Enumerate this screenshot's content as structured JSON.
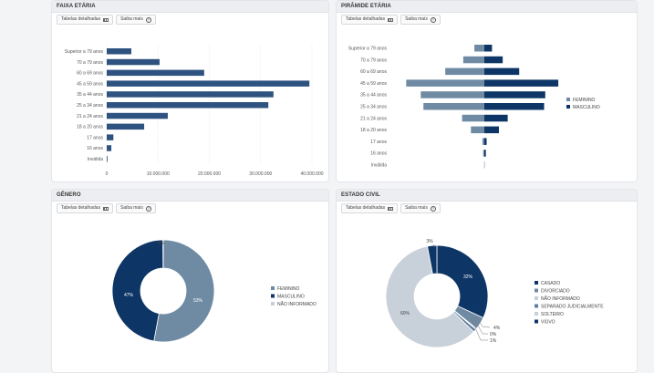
{
  "colors": {
    "dark": "#0d3566",
    "bar": "#2e5380",
    "gray": "#6f8aa3",
    "light": "#c6ced8",
    "mid": "#5d7ea1",
    "paleblue": "#a9b9cb"
  },
  "buttons": {
    "tables": "Tabelas detalhadas",
    "more": "Saiba mais"
  },
  "panels": {
    "faixa": {
      "title": "FAIXA ETÁRIA"
    },
    "piramide": {
      "title": "PIRÂMIDE ETÁRIA"
    },
    "genero": {
      "title": "GÊNERO"
    },
    "civil": {
      "title": "ESTADO CIVIL"
    }
  },
  "chart_data": [
    {
      "id": "faixa",
      "type": "bar",
      "orientation": "horizontal",
      "title": "FAIXA ETÁRIA",
      "categories": [
        "Superior a 79 anos",
        "70 a 79 anos",
        "60 a 69 anos",
        "45 a 59 anos",
        "35 a 44 anos",
        "25 a 34 anos",
        "21 a 24 anos",
        "18 a 20 anos",
        "17 anos",
        "16 anos",
        "Inválida"
      ],
      "values": [
        4800000,
        10300000,
        19000000,
        39500000,
        32500000,
        31500000,
        11900000,
        7300000,
        1300000,
        900000,
        150000
      ],
      "xlim": [
        0,
        40000000
      ],
      "ticks": [
        0,
        10000000,
        20000000,
        30000000,
        40000000
      ],
      "tick_labels": [
        "0",
        "10.000.000",
        "20.000.000",
        "30.000.000",
        "40.000.000"
      ],
      "grid": true
    },
    {
      "id": "piramide",
      "type": "bar",
      "orientation": "horizontal-diverging",
      "title": "PIRÂMIDE ETÁRIA",
      "categories": [
        "Superior a 79 anos",
        "70 a 79 anos",
        "60 a 69 anos",
        "45 a 59 anos",
        "35 a 44 anos",
        "25 a 34 anos",
        "21 a 24 anos",
        "18 a 20 anos",
        "17 anos",
        "16 anos",
        "Inválida"
      ],
      "series": [
        {
          "name": "FEMININO",
          "values": [
            2.6,
            5.5,
            10.2,
            20.4,
            16.6,
            15.9,
            5.8,
            3.5,
            0.5,
            0.3,
            0.05
          ]
        },
        {
          "name": "MASCULINO",
          "values": [
            2.0,
            4.8,
            9.1,
            19.3,
            15.9,
            15.6,
            6.1,
            3.8,
            0.6,
            0.4,
            0.05
          ]
        }
      ],
      "legend_position": "right"
    },
    {
      "id": "genero",
      "type": "pie",
      "donut": true,
      "title": "GÊNERO",
      "labels": [
        "FEMININO",
        "MASCULINO",
        "NÃO INFORMADO"
      ],
      "values": [
        53,
        47,
        0.1
      ],
      "value_labels": [
        "53%",
        "47%",
        "0%"
      ],
      "legend_position": "right"
    },
    {
      "id": "civil",
      "type": "pie",
      "donut": true,
      "title": "ESTADO CIVIL",
      "labels": [
        "CASADO",
        "DIVORCIADO",
        "NÃO INFORMADO",
        "SEPARADO JUDICIALMENTE",
        "SOLTEIRO",
        "VIÚVO"
      ],
      "values": [
        32,
        4,
        0.3,
        1,
        60,
        3
      ],
      "value_labels": [
        "32%",
        "4%",
        "0%",
        "1%",
        "60%",
        "3%"
      ],
      "legend_position": "right"
    }
  ]
}
